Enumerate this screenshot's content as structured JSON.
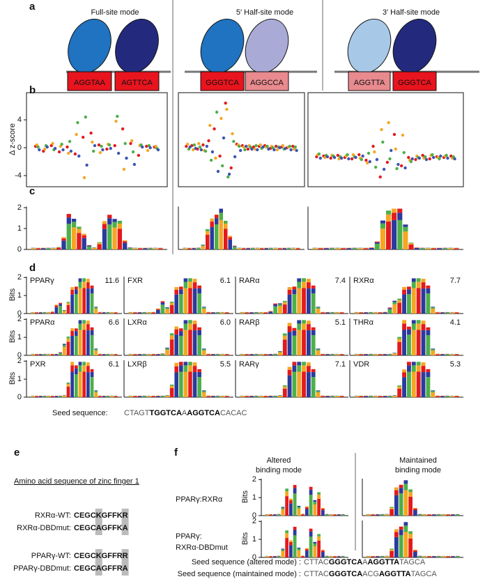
{
  "panel_a": {
    "label": "a",
    "columns": [
      {
        "title": "Full-site mode",
        "sites": [
          {
            "text": "AGGTAA",
            "color": "#e8141e"
          },
          {
            "text": "AGTTCA",
            "color": "#e8141e"
          }
        ],
        "ovals": [
          "#1f73c0",
          "#232a7e"
        ]
      },
      {
        "title": "5′ Half-site mode",
        "sites": [
          {
            "text": "GGGTCA",
            "color": "#e8141e"
          },
          {
            "text": "AGGCCA",
            "color": "#e88a8e"
          }
        ],
        "ovals": [
          "#1f73c0",
          "#a9abd6"
        ]
      },
      {
        "title": "3′ Half-site mode",
        "sites": [
          {
            "text": "AGGTTA",
            "color": "#e88a8e"
          },
          {
            "text": "GGGTCA",
            "color": "#e8141e"
          }
        ],
        "ovals": [
          "#a8c8e8",
          "#232a7e"
        ]
      }
    ]
  },
  "panel_b": {
    "label": "b",
    "y_label": "Δ z-score",
    "ylim": [
      -5.6,
      7.9
    ],
    "yticks": [
      -4,
      0,
      4
    ],
    "plots": [
      {
        "series": [
          {
            "color": "#e31a1c",
            "values": [
              0.2,
              -0.5,
              0.3,
              -0.6,
              0.1,
              -0.9,
              1.5,
              2.1,
              0.4,
              -0.2,
              0.3,
              2.7,
              0.6,
              -1.1,
              0.2,
              0.1
            ]
          },
          {
            "color": "#f5a623",
            "values": [
              0.4,
              -0.2,
              0.6,
              0.2,
              -0.8,
              1.9,
              -4.3,
              0.8,
              -0.7,
              0.5,
              3.8,
              -3.1,
              1.0,
              0.3,
              -0.4,
              0.2
            ]
          },
          {
            "color": "#4daf4a",
            "values": [
              0.1,
              0.3,
              -0.3,
              0.5,
              0.9,
              3.6,
              4.4,
              -0.5,
              0.2,
              0.4,
              4.5,
              0.6,
              -0.6,
              0.4,
              0.3,
              -0.1
            ]
          },
          {
            "color": "#3a55b4",
            "values": [
              -0.3,
              0.1,
              -0.1,
              -0.3,
              -0.5,
              -1.2,
              -2.5,
              0.3,
              -0.3,
              -0.1,
              -0.8,
              -1.5,
              -2.4,
              0.1,
              0.0,
              -0.3
            ]
          }
        ]
      },
      {
        "series": [
          {
            "color": "#e31a1c",
            "values": [
              0.2,
              0.3,
              -0.2,
              0.4,
              1.0,
              2.7,
              -1.2,
              6.4,
              -2.9,
              0.5,
              0.3,
              -0.2,
              0.1,
              0.2,
              0.3,
              -0.1,
              0.2,
              0.1,
              0.0,
              0.2
            ]
          },
          {
            "color": "#f5a623",
            "values": [
              0.5,
              -0.3,
              0.6,
              -0.4,
              3.2,
              -1.5,
              4.2,
              5.5,
              2.0,
              0.4,
              0.1,
              0.3,
              -0.2,
              0.4,
              0.1,
              0.2,
              -0.3,
              0.3,
              0.1,
              -0.2
            ]
          },
          {
            "color": "#4daf4a",
            "values": [
              -0.2,
              0.4,
              0.1,
              -0.5,
              -1.8,
              5.1,
              -2.6,
              -4.2,
              0.9,
              0.2,
              -0.3,
              0.1,
              0.3,
              -0.1,
              0.2,
              0.0,
              0.1,
              -0.2,
              0.2,
              0.1
            ]
          },
          {
            "color": "#3a55b4",
            "values": [
              0.1,
              -0.1,
              -0.3,
              0.2,
              -0.6,
              -3.4,
              1.4,
              -3.8,
              -1.3,
              -0.4,
              0.2,
              -0.2,
              -0.3,
              0.1,
              -0.2,
              -0.3,
              0.0,
              -0.1,
              -0.3,
              -0.4
            ]
          }
        ]
      },
      {
        "series": [
          {
            "color": "#e31a1c",
            "values": [
              -1.3,
              -1.2,
              -1.5,
              -1.1,
              -1.4,
              -1.6,
              -1.0,
              -1.8,
              0.2,
              -4.2,
              -2.1,
              1.9,
              -2.6,
              -1.4,
              -1.7,
              -1.1,
              -1.6,
              -1.3,
              -1.4,
              -1.2
            ]
          },
          {
            "color": "#f5a623",
            "values": [
              -1.0,
              -1.4,
              -1.1,
              -1.6,
              -1.2,
              -1.0,
              -1.5,
              -2.2,
              -0.6,
              2.6,
              3.6,
              -0.2,
              1.8,
              -1.8,
              -1.2,
              -1.5,
              -1.1,
              -1.4,
              -1.2,
              -1.5
            ]
          },
          {
            "color": "#4daf4a",
            "values": [
              -0.9,
              -1.1,
              -1.2,
              -1.3,
              -1.0,
              -1.3,
              -1.7,
              -0.8,
              -2.8,
              0.8,
              -1.6,
              -3.0,
              -0.7,
              -2.0,
              -1.4,
              -1.3,
              -1.0,
              -1.6,
              -1.1,
              -1.3
            ]
          },
          {
            "color": "#3a55b4",
            "values": [
              -1.5,
              -1.3,
              -1.4,
              -1.5,
              -1.6,
              -1.4,
              -1.2,
              -2.0,
              -1.7,
              -3.1,
              -0.4,
              -2.4,
              -2.9,
              -1.6,
              -1.5,
              -1.7,
              -1.4,
              -1.2,
              -1.5,
              -1.6
            ]
          }
        ]
      }
    ]
  },
  "panel_c": {
    "label": "c",
    "ylim": [
      0,
      2.05
    ],
    "yticks": [
      0,
      1,
      2
    ]
  },
  "panel_d": {
    "label": "d",
    "y_label": "Bits",
    "ylim": [
      0,
      2.05
    ],
    "yticks": [
      0,
      1,
      2
    ],
    "cells": [
      {
        "name": "PPARγ",
        "score": "11.6"
      },
      {
        "name": "FXR",
        "score": "6.1"
      },
      {
        "name": "RARα",
        "score": "7.4"
      },
      {
        "name": "RXRα",
        "score": "7.7"
      },
      {
        "name": "PPARα",
        "score": "6.6"
      },
      {
        "name": "LXRα",
        "score": "6.0"
      },
      {
        "name": "RARβ",
        "score": "5.1"
      },
      {
        "name": "THRα",
        "score": "4.1"
      },
      {
        "name": "PXR",
        "score": "6.1"
      },
      {
        "name": "LXRβ",
        "score": "5.5"
      },
      {
        "name": "RARγ",
        "score": "7.1"
      },
      {
        "name": "VDR",
        "score": "5.3"
      }
    ],
    "seed_label": "Seed sequence:",
    "seed_parts": [
      "CTAGT",
      "TGGTCA",
      "A",
      "AGGTCA",
      "CACAC"
    ]
  },
  "panel_e": {
    "label": "e",
    "heading": "Amino acid sequence of zinc finger 1",
    "rows": [
      {
        "name": "RXRα-WT:",
        "sequence": "CEGCKGFFKR"
      },
      {
        "name": "RXRα-DBDmut:",
        "sequence": "CEGCAGFFKA"
      },
      {
        "name": "PPARγ-WT:",
        "sequence": "CEGCKGFFRR"
      },
      {
        "name": "PPARγ-DBDmut:",
        "sequence": "CEGCAGFFRA"
      }
    ]
  },
  "panel_f": {
    "label": "f",
    "y_label": "Bits",
    "ylim": [
      0,
      2.05
    ],
    "yticks": [
      0,
      1,
      2
    ],
    "columns": [
      [
        "Altered",
        "binding mode"
      ],
      [
        "Maintained",
        "binding mode"
      ]
    ],
    "rows": [
      [
        "PPARγ:RXRα"
      ],
      [
        "PPARγ:",
        "RXRα-DBDmut"
      ]
    ],
    "seeds": [
      {
        "label": "Seed sequence (altered mode) :",
        "parts": [
          "CTTAC",
          "GGGTCA",
          "A",
          "AGGTTA",
          "TAGCA"
        ]
      },
      {
        "label": "Seed sequence (maintained mode) :",
        "parts": [
          "CTTAC",
          "GGGTCA",
          "ACG",
          "AGGTTA",
          "TAGCA"
        ]
      }
    ]
  }
}
